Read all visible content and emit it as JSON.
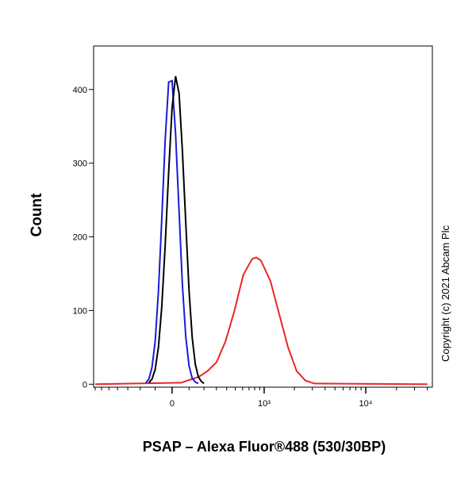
{
  "chart_data": {
    "type": "histogram-overlay",
    "y_label": "Count",
    "x_label": "PSAP – Alexa Fluor®488 (530/30BP)",
    "side_note": "Copyright (c) 2021 Abcam Plc",
    "xscale": "arcsinh",
    "xscale_width": 256,
    "xlim": [
      -727,
      44780
    ],
    "xticks": [
      {
        "value": 0,
        "label": "0"
      },
      {
        "value": 1000,
        "label": "10³"
      },
      {
        "value": 10000,
        "label": "10⁴"
      }
    ],
    "xminorticks": [
      -700,
      -600,
      -500,
      -400,
      -300,
      -200,
      -100,
      100,
      200,
      300,
      400,
      500,
      600,
      700,
      800,
      900,
      2000,
      3000,
      4000,
      5000,
      6000,
      7000,
      8000,
      9000,
      20000,
      30000,
      40000
    ],
    "ylim": [
      -4,
      459
    ],
    "yticks": [
      0,
      100,
      200,
      300,
      400
    ],
    "series": [
      {
        "color": "#e8262a",
        "x": [
          -700,
          52,
          105,
          164,
          227,
          301,
          387,
          490,
          609,
          753,
          833,
          928,
          1157,
          1415,
          1730,
          2103,
          2563,
          3130,
          40000
        ],
        "values": [
          0,
          2,
          6,
          10,
          18,
          30,
          58,
          100,
          148,
          170,
          172,
          168,
          140,
          95,
          50,
          18,
          5,
          1,
          0
        ]
      },
      {
        "color": "#1a1adb",
        "x": [
          -160,
          -140,
          -120,
          -100,
          -80,
          -60,
          -40,
          -20,
          0,
          20,
          40,
          60,
          80,
          100,
          120,
          140,
          160
        ],
        "values": [
          2,
          7,
          23,
          58,
          126,
          224,
          331,
          410,
          412,
          340,
          235,
          135,
          64,
          25,
          8,
          3,
          1
        ]
      },
      {
        "color": "#000000",
        "x": [
          -140,
          -120,
          -100,
          -80,
          -60,
          -40,
          -20,
          0,
          20,
          40,
          60,
          80,
          100,
          120,
          140,
          160,
          180,
          200
        ],
        "values": [
          2,
          7,
          20,
          50,
          105,
          188,
          288,
          375,
          418,
          395,
          317,
          218,
          127,
          63,
          27,
          10,
          4,
          1
        ]
      }
    ]
  }
}
